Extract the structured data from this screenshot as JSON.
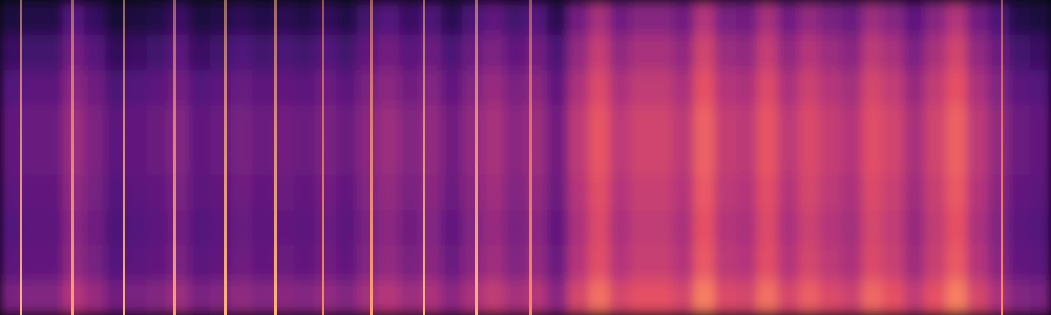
{
  "chart_data": {
    "type": "heatmap",
    "tick_labels": false,
    "grid": false,
    "xlim": [
      0,
      1500
    ],
    "ylim": [
      0,
      9
    ],
    "zlim": [
      0,
      1
    ],
    "cells": [
      [
        0.12,
        0.14,
        0.14,
        0.26,
        0.19,
        0.1,
        0.12,
        0.14,
        0.2,
        0.12,
        0.14,
        0.17,
        0.14,
        0.16,
        0.14,
        0.18,
        0.14,
        0.22,
        0.26,
        0.2,
        0.24,
        0.16,
        0.24,
        0.29,
        0.22,
        0.26,
        0.16,
        0.34,
        0.46,
        0.34,
        0.39,
        0.39,
        0.34,
        0.49,
        0.36,
        0.34,
        0.46,
        0.34,
        0.42,
        0.36,
        0.32,
        0.44,
        0.39,
        0.29,
        0.39,
        0.49,
        0.34,
        0.24,
        0.14,
        0.12
      ],
      [
        0.2,
        0.22,
        0.22,
        0.34,
        0.27,
        0.18,
        0.2,
        0.22,
        0.28,
        0.2,
        0.22,
        0.25,
        0.22,
        0.24,
        0.22,
        0.26,
        0.22,
        0.3,
        0.34,
        0.28,
        0.32,
        0.24,
        0.32,
        0.37,
        0.3,
        0.34,
        0.24,
        0.42,
        0.54,
        0.42,
        0.47,
        0.47,
        0.42,
        0.57,
        0.44,
        0.42,
        0.54,
        0.42,
        0.5,
        0.44,
        0.4,
        0.52,
        0.47,
        0.37,
        0.47,
        0.57,
        0.42,
        0.32,
        0.22,
        0.2
      ],
      [
        0.26,
        0.28,
        0.28,
        0.4,
        0.33,
        0.24,
        0.26,
        0.28,
        0.34,
        0.26,
        0.28,
        0.31,
        0.28,
        0.3,
        0.28,
        0.32,
        0.28,
        0.36,
        0.4,
        0.34,
        0.38,
        0.3,
        0.38,
        0.43,
        0.36,
        0.4,
        0.3,
        0.48,
        0.6,
        0.48,
        0.53,
        0.53,
        0.48,
        0.63,
        0.5,
        0.48,
        0.6,
        0.48,
        0.56,
        0.5,
        0.46,
        0.58,
        0.53,
        0.43,
        0.53,
        0.63,
        0.48,
        0.38,
        0.28,
        0.26
      ],
      [
        0.3,
        0.32,
        0.32,
        0.44,
        0.37,
        0.28,
        0.3,
        0.32,
        0.38,
        0.3,
        0.32,
        0.35,
        0.32,
        0.34,
        0.32,
        0.36,
        0.32,
        0.4,
        0.44,
        0.38,
        0.42,
        0.34,
        0.42,
        0.47,
        0.4,
        0.44,
        0.34,
        0.52,
        0.64,
        0.52,
        0.57,
        0.57,
        0.52,
        0.67,
        0.54,
        0.52,
        0.64,
        0.52,
        0.6,
        0.54,
        0.5,
        0.62,
        0.57,
        0.47,
        0.57,
        0.67,
        0.52,
        0.42,
        0.32,
        0.3
      ],
      [
        0.3,
        0.32,
        0.32,
        0.44,
        0.37,
        0.28,
        0.3,
        0.32,
        0.38,
        0.3,
        0.32,
        0.35,
        0.32,
        0.34,
        0.32,
        0.36,
        0.32,
        0.4,
        0.44,
        0.38,
        0.42,
        0.34,
        0.42,
        0.47,
        0.4,
        0.44,
        0.34,
        0.52,
        0.64,
        0.52,
        0.57,
        0.57,
        0.52,
        0.67,
        0.54,
        0.52,
        0.64,
        0.52,
        0.6,
        0.54,
        0.5,
        0.62,
        0.57,
        0.47,
        0.57,
        0.67,
        0.52,
        0.42,
        0.32,
        0.3
      ],
      [
        0.28,
        0.3,
        0.3,
        0.42,
        0.35,
        0.26,
        0.28,
        0.3,
        0.36,
        0.28,
        0.3,
        0.33,
        0.3,
        0.32,
        0.3,
        0.34,
        0.3,
        0.38,
        0.42,
        0.36,
        0.4,
        0.32,
        0.4,
        0.45,
        0.38,
        0.42,
        0.32,
        0.5,
        0.62,
        0.5,
        0.55,
        0.55,
        0.5,
        0.65,
        0.52,
        0.5,
        0.62,
        0.5,
        0.58,
        0.52,
        0.48,
        0.6,
        0.55,
        0.45,
        0.55,
        0.65,
        0.5,
        0.4,
        0.3,
        0.28
      ],
      [
        0.26,
        0.28,
        0.28,
        0.4,
        0.33,
        0.24,
        0.26,
        0.28,
        0.34,
        0.26,
        0.28,
        0.31,
        0.28,
        0.3,
        0.28,
        0.32,
        0.28,
        0.36,
        0.4,
        0.34,
        0.38,
        0.3,
        0.38,
        0.43,
        0.36,
        0.4,
        0.3,
        0.48,
        0.6,
        0.48,
        0.53,
        0.53,
        0.48,
        0.63,
        0.5,
        0.48,
        0.6,
        0.48,
        0.56,
        0.5,
        0.46,
        0.58,
        0.53,
        0.43,
        0.53,
        0.63,
        0.48,
        0.38,
        0.28,
        0.26
      ],
      [
        0.28,
        0.3,
        0.3,
        0.42,
        0.35,
        0.26,
        0.28,
        0.3,
        0.36,
        0.28,
        0.3,
        0.33,
        0.3,
        0.32,
        0.3,
        0.34,
        0.3,
        0.38,
        0.42,
        0.36,
        0.4,
        0.32,
        0.4,
        0.45,
        0.38,
        0.42,
        0.32,
        0.5,
        0.62,
        0.5,
        0.55,
        0.55,
        0.5,
        0.65,
        0.52,
        0.5,
        0.62,
        0.5,
        0.58,
        0.52,
        0.48,
        0.6,
        0.55,
        0.45,
        0.55,
        0.65,
        0.5,
        0.4,
        0.3,
        0.28
      ],
      [
        0.36,
        0.38,
        0.38,
        0.5,
        0.43,
        0.34,
        0.36,
        0.38,
        0.44,
        0.36,
        0.38,
        0.41,
        0.38,
        0.4,
        0.38,
        0.42,
        0.38,
        0.46,
        0.5,
        0.44,
        0.48,
        0.4,
        0.48,
        0.53,
        0.46,
        0.5,
        0.4,
        0.58,
        0.7,
        0.58,
        0.63,
        0.63,
        0.58,
        0.73,
        0.6,
        0.58,
        0.7,
        0.58,
        0.66,
        0.6,
        0.56,
        0.68,
        0.63,
        0.53,
        0.63,
        0.73,
        0.58,
        0.48,
        0.38,
        0.36
      ]
    ],
    "transients": {
      "x": [
        30,
        104,
        177,
        249,
        322,
        393,
        461,
        530,
        605,
        680,
        757,
        1430
      ],
      "values": [
        0.85,
        0.8,
        0.85,
        0.8,
        0.85,
        0.85,
        0.75,
        0.8,
        0.85,
        0.85,
        0.75,
        0.75
      ]
    }
  }
}
